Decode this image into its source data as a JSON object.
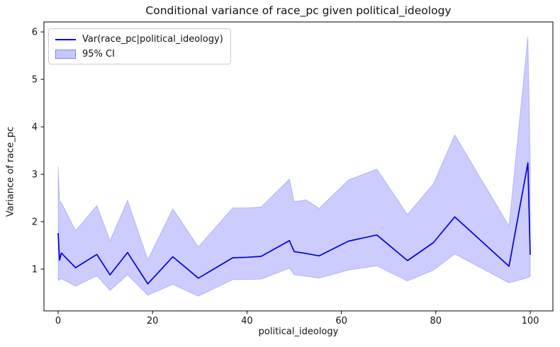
{
  "chart_data": {
    "type": "line",
    "title": "Conditional variance of race_pc given political_ideology",
    "xlabel": "political_ideology",
    "ylabel": "Variance of race_pc",
    "xlim": [
      -3.0,
      104.8
    ],
    "ylim": [
      0.12,
      6.21
    ],
    "xticks": [
      0,
      20,
      40,
      60,
      80,
      100
    ],
    "yticks": [
      1,
      2,
      3,
      4,
      5,
      6
    ],
    "grid": false,
    "legend_position": "upper left",
    "legend": [
      {
        "label": "Var(race_pc|political_ideology)",
        "type": "line",
        "color": "#0000e6"
      },
      {
        "label": "95% CI",
        "type": "patch",
        "color": "rgba(0,0,255,0.22)"
      }
    ],
    "line_color": "#0000e6",
    "band_fill_color": "rgba(0,0,255,0.20)",
    "band_edge_color": "rgba(0,0,255,0.20)",
    "series": [
      {
        "name": "Var(race_pc|political_ideology)",
        "type": "line",
        "x": [
          0,
          0.3,
          0.7,
          3.7,
          8.2,
          11,
          14.7,
          19,
          24.3,
          29.7,
          37,
          40,
          43,
          49,
          50,
          52.5,
          55.3,
          61.5,
          67.5,
          74,
          79.5,
          84,
          95.5,
          99.5,
          100
        ],
        "y": [
          1.76,
          1.19,
          1.34,
          1.03,
          1.31,
          0.88,
          1.35,
          0.69,
          1.26,
          0.81,
          1.24,
          1.25,
          1.27,
          1.6,
          1.37,
          1.33,
          1.28,
          1.59,
          1.72,
          1.18,
          1.56,
          2.1,
          1.06,
          3.24,
          1.3
        ]
      },
      {
        "name": "95% CI",
        "type": "band",
        "x": [
          0,
          0.3,
          0.7,
          3.7,
          8.2,
          11,
          14.7,
          19,
          24.3,
          29.7,
          37,
          40,
          43,
          49,
          50,
          52.5,
          55.3,
          61.5,
          67.5,
          74,
          79.5,
          84,
          95.5,
          99.5,
          100
        ],
        "lower": [
          0.77,
          0.77,
          0.8,
          0.64,
          0.86,
          0.55,
          0.88,
          0.45,
          0.68,
          0.43,
          0.78,
          0.78,
          0.79,
          1.02,
          0.88,
          0.85,
          0.81,
          0.98,
          1.07,
          0.75,
          0.98,
          1.32,
          0.71,
          0.82,
          0.85
        ],
        "upper": [
          3.16,
          2.43,
          2.4,
          1.81,
          2.34,
          1.6,
          2.45,
          1.2,
          2.27,
          1.47,
          2.29,
          2.29,
          2.31,
          2.9,
          2.42,
          2.46,
          2.28,
          2.88,
          3.11,
          2.15,
          2.8,
          3.83,
          1.91,
          5.9,
          3.27
        ]
      }
    ]
  }
}
